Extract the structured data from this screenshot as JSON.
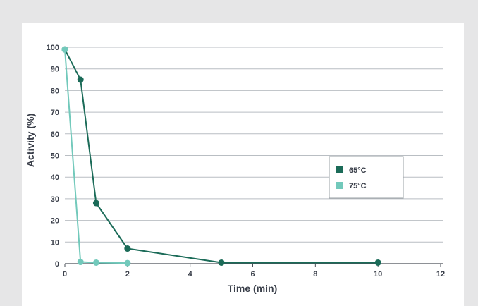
{
  "chart_data": {
    "type": "line",
    "title": "",
    "xlabel": "Time (min)",
    "ylabel": "Activity (%)",
    "xlim": [
      0,
      12
    ],
    "ylim": [
      0,
      100
    ],
    "xticks": [
      0,
      2,
      4,
      6,
      8,
      10,
      12
    ],
    "yticks": [
      0,
      10,
      20,
      30,
      40,
      50,
      60,
      70,
      80,
      90,
      100
    ],
    "grid": "horizontal",
    "legend_position": "right",
    "series": [
      {
        "name": "65°C",
        "color": "#1b6b58",
        "x": [
          0,
          0.5,
          1,
          2,
          5,
          10
        ],
        "y": [
          99,
          85,
          28,
          7,
          0.5,
          0.5
        ]
      },
      {
        "name": "75°C",
        "color": "#72c9bb",
        "x": [
          0,
          0.5,
          1,
          2
        ],
        "y": [
          99,
          0.8,
          0.5,
          0.3
        ]
      }
    ]
  }
}
